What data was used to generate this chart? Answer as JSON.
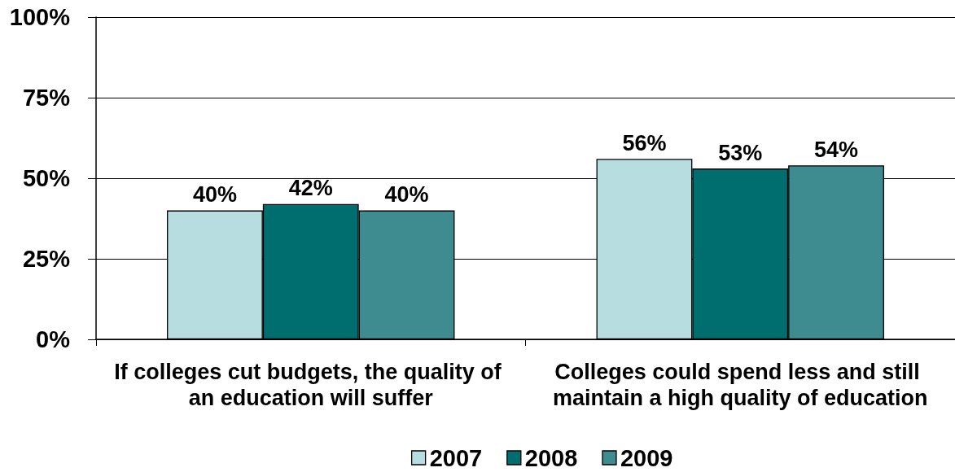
{
  "chart_data": {
    "type": "bar",
    "categories": [
      "If colleges cut budgets, the quality of an education will suffer",
      "Colleges could spend less and still maintain a high quality of education"
    ],
    "series": [
      {
        "name": "2007",
        "color": "#b8dde1",
        "values": [
          40,
          56
        ],
        "value_labels": [
          "40%",
          "56%"
        ]
      },
      {
        "name": "2008",
        "color": "#006e6e",
        "values": [
          42,
          53
        ],
        "value_labels": [
          "42%",
          "53%"
        ]
      },
      {
        "name": "2009",
        "color": "#3f8c90",
        "values": [
          40,
          54
        ],
        "value_labels": [
          "40%",
          "54%"
        ]
      }
    ],
    "ylim": [
      0,
      100
    ],
    "yticks": [
      {
        "value": 0,
        "label": "0%"
      },
      {
        "value": 25,
        "label": "25%"
      },
      {
        "value": 50,
        "label": "50%"
      },
      {
        "value": 75,
        "label": "75%"
      },
      {
        "value": 100,
        "label": "100%"
      }
    ],
    "grid": "y",
    "legend": "bottom"
  }
}
